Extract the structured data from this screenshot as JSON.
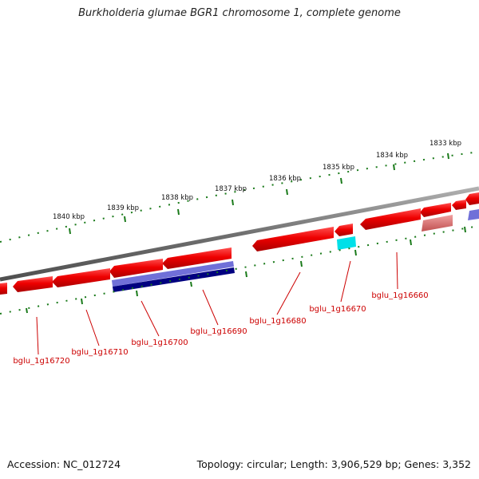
{
  "title": "Burkholderia glumae BGR1 chromosome 1, complete genome",
  "accession_text": "Accession: NC_012724",
  "topology_text": "Topology: circular; Length: 3,906,529 bp; Genes: 3,352",
  "scale_labels": [
    "1833 kbp",
    "1834 kbp",
    "1835 kbp",
    "1836 kbp",
    "1837 kbp",
    "1838 kbp",
    "1839 kbp",
    "1840 kbp"
  ],
  "gene_labels": [
    "bglu_1g16660",
    "bglu_1g16670",
    "bglu_1g16680",
    "bglu_1g16690",
    "bglu_1g16700",
    "bglu_1g16710",
    "bglu_1g16720"
  ],
  "colors": {
    "cds": "#e00000",
    "cds_light": "#e88080",
    "rna_blue": "#7070d8",
    "rna_dark": "#000080",
    "cyan": "#00e0e8",
    "backbone": "#888888",
    "ticks": "#1a7a1a",
    "label": "#cc0000"
  }
}
